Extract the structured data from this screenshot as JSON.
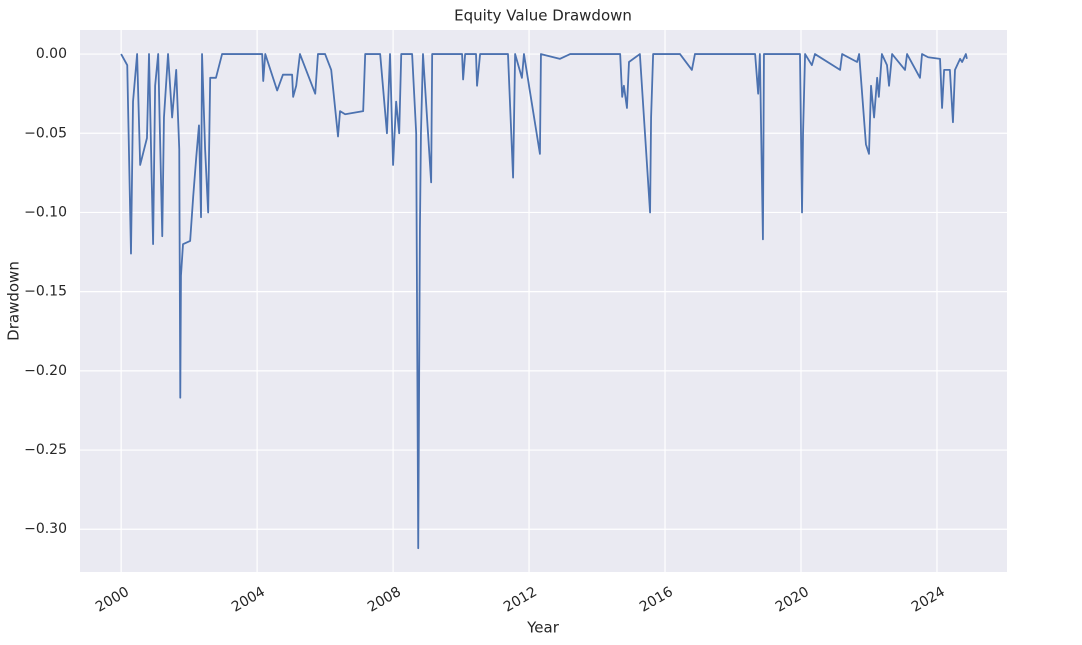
{
  "chart_data": {
    "type": "line",
    "title": "Equity Value Drawdown",
    "x_label": "Year",
    "y_label": "Drawdown",
    "color": "#4c72b0",
    "grid": true,
    "xlim": [
      1998.79,
      2026.06
    ],
    "xticks": [
      2000,
      2004,
      2008,
      2012,
      2016,
      2020,
      2024
    ],
    "ylim": [
      -0.327,
      0.0152
    ],
    "yticks": [
      {
        "value": 0,
        "label": "0.00"
      },
      {
        "value": -0.05,
        "label": "−0.05"
      },
      {
        "value": -0.1,
        "label": "−0.10"
      },
      {
        "value": -0.15,
        "label": "−0.15"
      },
      {
        "value": -0.2,
        "label": "−0.20"
      },
      {
        "value": -0.25,
        "label": "−0.25"
      },
      {
        "value": -0.3,
        "label": "−0.30"
      }
    ],
    "x": [
      2000.0,
      2000.18,
      2000.29,
      2000.35,
      2000.47,
      2000.56,
      2000.76,
      2000.82,
      2000.94,
      2001.0,
      2001.09,
      2001.21,
      2001.26,
      2001.38,
      2001.5,
      2001.62,
      2001.71,
      2001.74,
      2001.76,
      2001.82,
      2002.03,
      2002.12,
      2002.21,
      2002.29,
      2002.35,
      2002.38,
      2002.47,
      2002.56,
      2002.62,
      2002.79,
      2002.97,
      2004.15,
      2004.18,
      2004.24,
      2004.59,
      2004.76,
      2005.03,
      2005.06,
      2005.15,
      2005.26,
      2005.71,
      2005.79,
      2006.0,
      2006.18,
      2006.38,
      2006.44,
      2006.59,
      2007.12,
      2007.18,
      2007.62,
      2007.82,
      2007.91,
      2008.0,
      2008.09,
      2008.18,
      2008.24,
      2008.56,
      2008.68,
      2008.74,
      2008.79,
      2008.82,
      2008.88,
      2009.12,
      2009.15,
      2010.03,
      2010.06,
      2010.12,
      2010.44,
      2010.47,
      2010.56,
      2011.38,
      2011.53,
      2011.59,
      2011.79,
      2011.85,
      2012.32,
      2012.35,
      2012.91,
      2013.21,
      2014.68,
      2014.74,
      2014.79,
      2014.88,
      2014.94,
      2015.26,
      2015.56,
      2015.59,
      2015.65,
      2016.44,
      2016.79,
      2016.88,
      2018.65,
      2018.74,
      2018.79,
      2018.88,
      2018.91,
      2019.97,
      2020.03,
      2020.06,
      2020.12,
      2020.32,
      2020.41,
      2021.15,
      2021.21,
      2021.65,
      2021.71,
      2021.91,
      2022.0,
      2022.06,
      2022.15,
      2022.24,
      2022.29,
      2022.38,
      2022.53,
      2022.59,
      2022.68,
      2023.06,
      2023.12,
      2023.5,
      2023.56,
      2023.74,
      2024.09,
      2024.15,
      2024.21,
      2024.38,
      2024.47,
      2024.53,
      2024.68,
      2024.74,
      2024.85,
      2024.88
    ],
    "values": [
      0,
      -0.007,
      -0.126,
      -0.03,
      0,
      -0.07,
      -0.053,
      0,
      -0.12,
      -0.02,
      0,
      -0.115,
      -0.04,
      0,
      -0.04,
      -0.01,
      -0.06,
      -0.217,
      -0.14,
      -0.12,
      -0.118,
      -0.09,
      -0.065,
      -0.045,
      -0.103,
      0,
      -0.06,
      -0.1,
      -0.015,
      -0.015,
      0,
      0,
      -0.017,
      0,
      -0.023,
      -0.013,
      -0.013,
      -0.027,
      -0.02,
      0,
      -0.025,
      0,
      0,
      -0.01,
      -0.052,
      -0.036,
      -0.038,
      -0.036,
      0,
      0,
      -0.05,
      0,
      -0.07,
      -0.03,
      -0.05,
      0,
      0,
      -0.05,
      -0.312,
      -0.11,
      -0.05,
      0,
      -0.081,
      0,
      0,
      -0.016,
      0,
      0,
      -0.02,
      0,
      0,
      -0.078,
      0,
      -0.015,
      0,
      -0.063,
      0,
      -0.003,
      0,
      0,
      -0.027,
      -0.02,
      -0.034,
      -0.005,
      0,
      -0.1,
      -0.04,
      0,
      0,
      -0.01,
      0,
      0,
      -0.025,
      0,
      -0.117,
      0,
      0,
      -0.1,
      -0.05,
      0,
      -0.007,
      0,
      -0.01,
      0,
      -0.005,
      0,
      -0.057,
      -0.063,
      -0.02,
      -0.04,
      -0.015,
      -0.027,
      0,
      -0.007,
      -0.02,
      0,
      -0.01,
      0,
      -0.015,
      0,
      -0.002,
      -0.003,
      -0.034,
      -0.01,
      -0.01,
      -0.043,
      -0.01,
      -0.003,
      -0.005,
      0,
      -0.003
    ]
  }
}
